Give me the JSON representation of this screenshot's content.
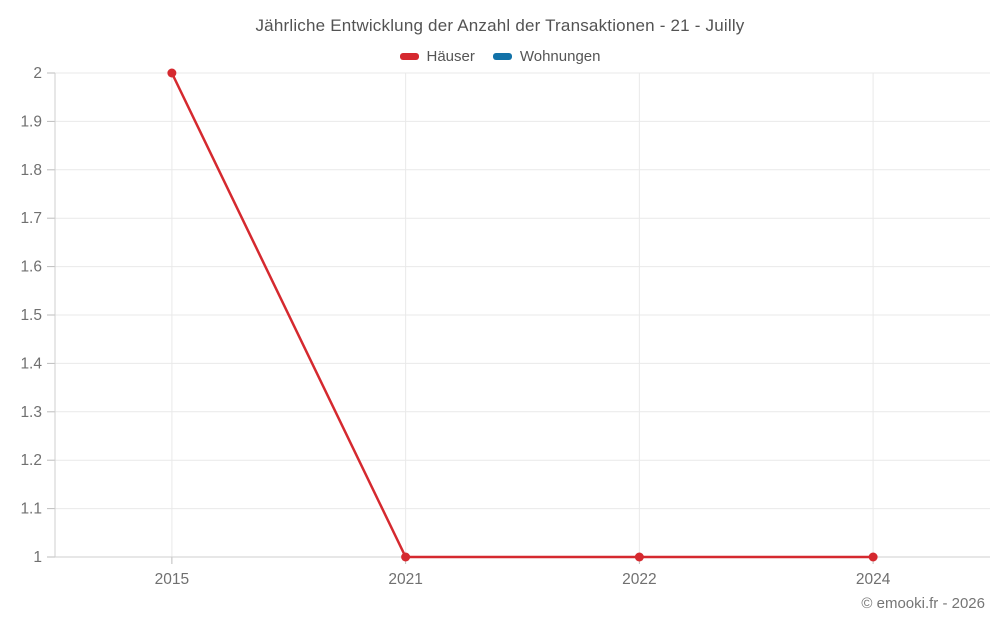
{
  "chart_data": {
    "type": "line",
    "title": "Jährliche Entwicklung der Anzahl der Transaktionen - 21 - Juilly",
    "categories": [
      "2015",
      "2021",
      "2022",
      "2024"
    ],
    "series": [
      {
        "name": "Häuser",
        "color": "#d5292f",
        "values": [
          2,
          1,
          1,
          1
        ]
      },
      {
        "name": "Wohnungen",
        "color": "#1272a8",
        "values": []
      }
    ],
    "ylim": [
      1,
      2
    ],
    "ytick_step": 0.1,
    "ytick_labels": [
      "1",
      "1.1",
      "1.2",
      "1.3",
      "1.4",
      "1.5",
      "1.6",
      "1.7",
      "1.8",
      "1.9",
      "2"
    ],
    "grid": "both",
    "legend_position": "top",
    "colors": {
      "grid": "#e9e9e9",
      "axis_border": "#cfcfcf",
      "tick": "#bdbdbd",
      "tick_label": "#707070",
      "title_text": "#535353"
    }
  },
  "footer": {
    "copyright": "© emooki.fr - 2026"
  }
}
